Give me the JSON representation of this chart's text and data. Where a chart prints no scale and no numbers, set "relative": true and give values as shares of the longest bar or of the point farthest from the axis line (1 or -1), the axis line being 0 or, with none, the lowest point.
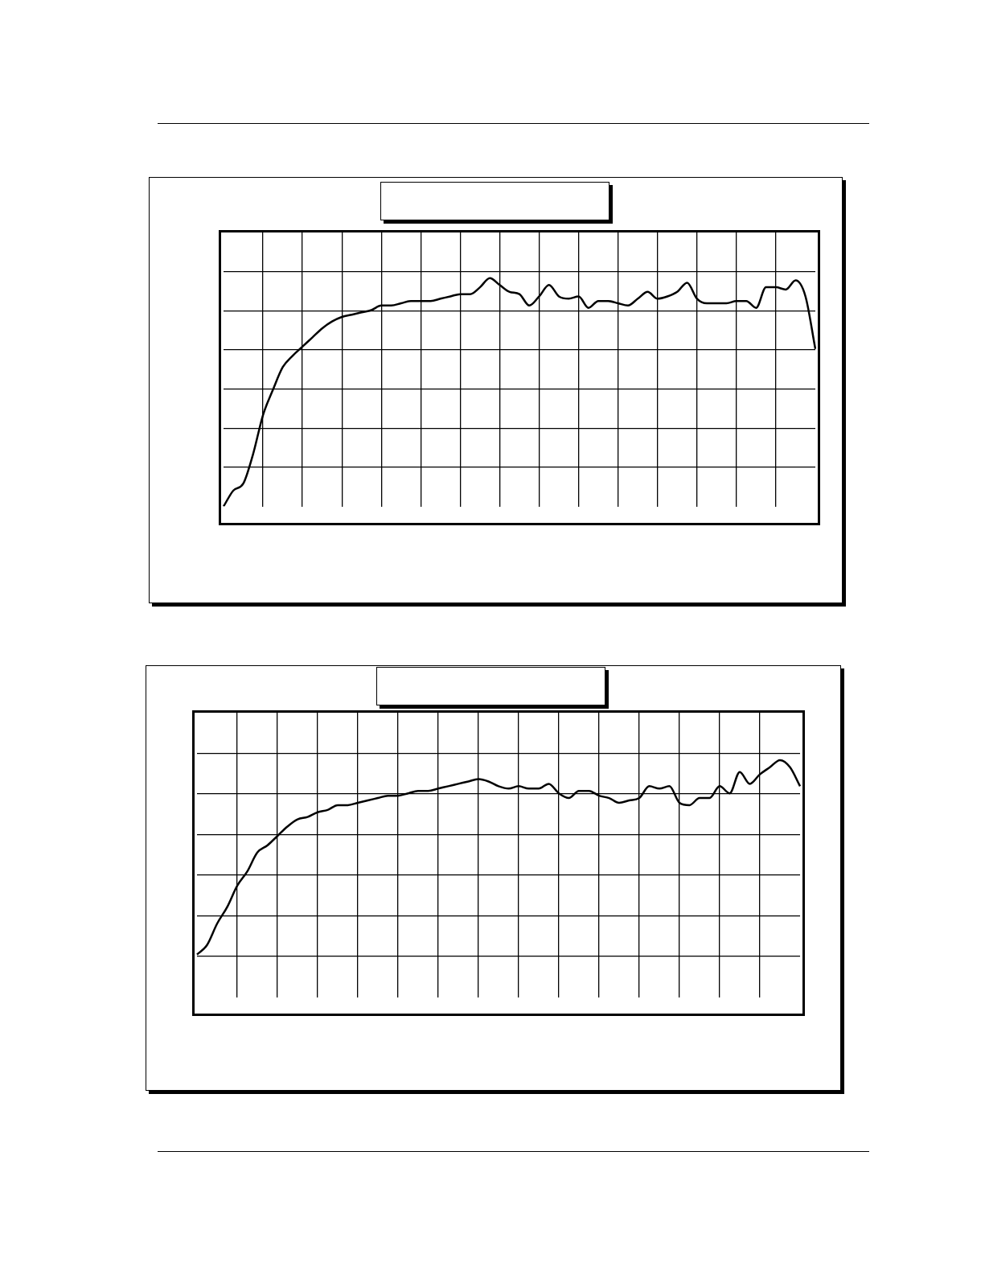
{
  "chart_data": [
    {
      "type": "line",
      "relative": true,
      "grid": true,
      "legend": false,
      "marker": "none",
      "line_style": "solid",
      "categories": [
        null,
        null,
        null,
        null,
        null,
        null,
        null,
        null,
        null,
        null,
        null,
        null,
        null,
        null,
        null,
        null,
        null,
        null,
        null,
        null,
        null,
        null,
        null,
        null,
        null,
        null,
        null,
        null,
        null,
        null,
        null,
        null,
        null,
        null,
        null,
        null,
        null,
        null,
        null,
        null,
        null,
        null,
        null,
        null,
        null,
        null,
        null,
        null,
        null,
        null,
        null,
        null,
        null,
        null,
        null,
        null,
        null,
        null,
        null,
        null,
        null
      ],
      "series": [
        {
          "color": "#000000",
          "values": [
            0,
            0.07,
            0.1,
            0.23,
            0.4,
            0.51,
            0.61,
            0.66,
            0.7,
            0.74,
            0.78,
            0.81,
            0.83,
            0.84,
            0.85,
            0.86,
            0.88,
            0.88,
            0.89,
            0.9,
            0.9,
            0.9,
            0.91,
            0.92,
            0.93,
            0.93,
            0.96,
            1,
            0.97,
            0.94,
            0.93,
            0.88,
            0.92,
            0.97,
            0.92,
            0.91,
            0.92,
            0.87,
            0.9,
            0.9,
            0.89,
            0.88,
            0.91,
            0.94,
            0.91,
            0.92,
            0.94,
            0.98,
            0.91,
            0.89,
            0.89,
            0.89,
            0.9,
            0.9,
            0.87,
            0.96,
            0.96,
            0.95,
            0.99,
            0.92,
            0.69
          ]
        }
      ]
    },
    {
      "type": "line",
      "relative": true,
      "grid": true,
      "legend": false,
      "marker": "none",
      "line_style": "solid",
      "categories": [
        null,
        null,
        null,
        null,
        null,
        null,
        null,
        null,
        null,
        null,
        null,
        null,
        null,
        null,
        null,
        null,
        null,
        null,
        null,
        null,
        null,
        null,
        null,
        null,
        null,
        null,
        null,
        null,
        null,
        null,
        null,
        null,
        null,
        null,
        null,
        null,
        null,
        null,
        null,
        null,
        null,
        null,
        null,
        null,
        null,
        null,
        null,
        null,
        null,
        null,
        null,
        null,
        null,
        null,
        null,
        null,
        null,
        null,
        null,
        null,
        null
      ],
      "series": [
        {
          "color": "#000000",
          "values": [
            0.18,
            0.22,
            0.31,
            0.38,
            0.47,
            0.53,
            0.61,
            0.64,
            0.68,
            0.72,
            0.75,
            0.76,
            0.78,
            0.79,
            0.81,
            0.81,
            0.82,
            0.83,
            0.84,
            0.85,
            0.85,
            0.86,
            0.87,
            0.87,
            0.88,
            0.89,
            0.9,
            0.91,
            0.92,
            0.91,
            0.89,
            0.88,
            0.89,
            0.88,
            0.88,
            0.9,
            0.86,
            0.84,
            0.87,
            0.87,
            0.85,
            0.84,
            0.82,
            0.83,
            0.84,
            0.89,
            0.88,
            0.89,
            0.82,
            0.81,
            0.84,
            0.84,
            0.89,
            0.86,
            0.95,
            0.9,
            0.94,
            0.97,
            1,
            0.97,
            0.89
          ]
        }
      ]
    }
  ]
}
